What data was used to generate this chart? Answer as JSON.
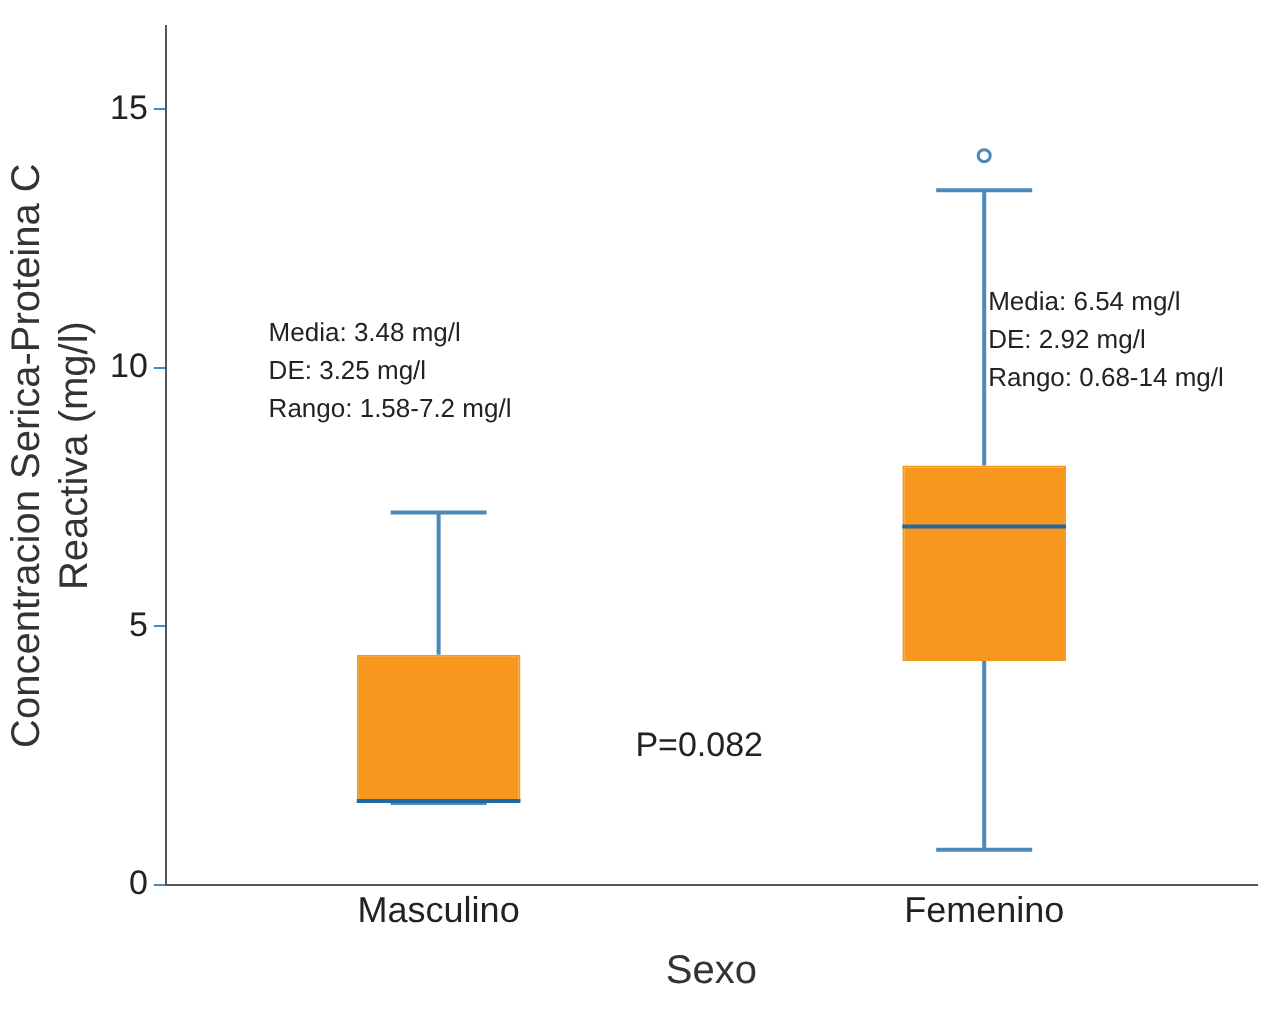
{
  "chart_data": {
    "type": "box",
    "xlabel": "Sexo",
    "ylabel": "Concentracion Serica-Proteina C\nReactiva (mg/l)",
    "categories": [
      "Masculino",
      "Femenino"
    ],
    "boxes": [
      {
        "low": 1.58,
        "q1": 1.62,
        "median": 1.62,
        "q3": 4.45,
        "high": 7.2
      },
      {
        "low": 0.68,
        "q1": 4.33,
        "median": 6.93,
        "q3": 8.11,
        "high": 13.43,
        "outliers": [
          14.1
        ]
      }
    ],
    "color": "#f7971d",
    "marker": "circle",
    "grid": false,
    "ylim": [
      0,
      16.6
    ],
    "yticks": [
      0,
      5,
      10,
      15
    ],
    "annotations": [
      "Media: 3.48 mg/l\nDE: 3.25 mg/l\nRango: 1.58-7.2 mg/l",
      "Media: 6.54 mg/l\nDE: 2.92 mg/l\nRango: 0.68-14 mg/l",
      "P=0.082"
    ]
  }
}
